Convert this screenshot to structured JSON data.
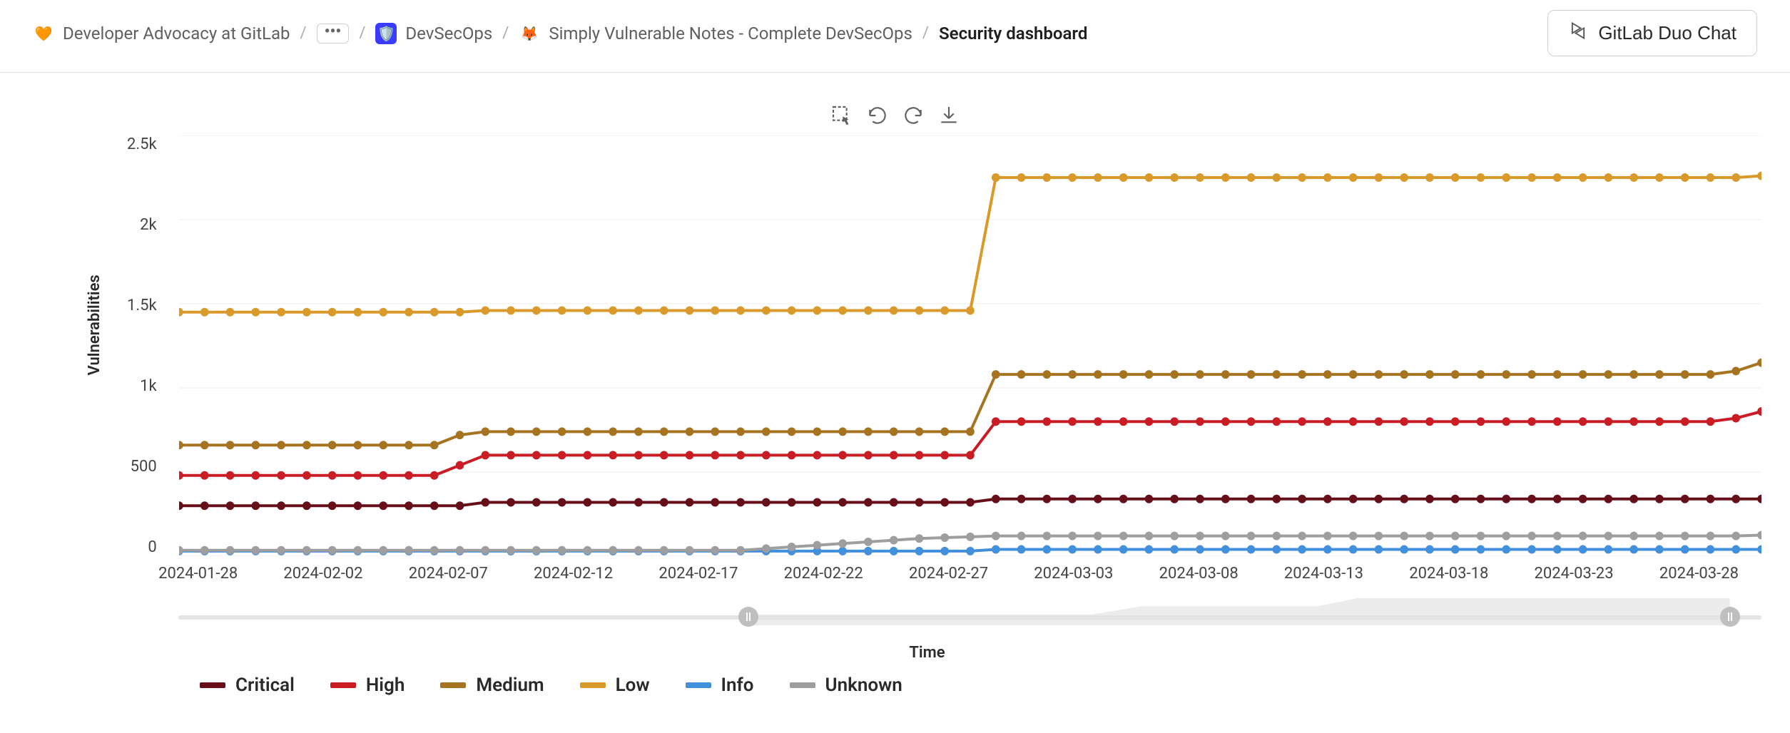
{
  "breadcrumb": {
    "items": [
      {
        "label": "Developer Advocacy at GitLab",
        "icon_bg": "#ffffff",
        "icon_emoji": "🧡"
      },
      {
        "label": "...",
        "is_ellipsis": true
      },
      {
        "label": "DevSecOps",
        "icon_bg": "#3b3bff",
        "icon_emoji": "🛡️"
      },
      {
        "label": "Simply Vulnerable Notes - Complete DevSecOps",
        "icon_bg": "#ffffff",
        "icon_emoji": "🦊"
      },
      {
        "label": "Security dashboard",
        "current": true
      }
    ]
  },
  "duo_button": {
    "label": "GitLab Duo Chat"
  },
  "chart": {
    "type": "line",
    "ylabel": "Vulnerabilities",
    "xlabel": "Time",
    "ylim": [
      0,
      2500
    ],
    "ytick_step": 500,
    "ytick_labels": [
      "2.5k",
      "2k",
      "1.5k",
      "1k",
      "500",
      "0"
    ],
    "background_color": "#ffffff",
    "grid_color": "#dadada",
    "marker_radius": 6,
    "line_width": 4,
    "x_tick_labels": [
      "2024-01-28",
      "2024-02-02",
      "2024-02-07",
      "2024-02-12",
      "2024-02-17",
      "2024-02-22",
      "2024-02-27",
      "2024-03-03",
      "2024-03-08",
      "2024-03-13",
      "2024-03-18",
      "2024-03-23",
      "2024-03-28"
    ],
    "n_points": 63,
    "series": [
      {
        "name": "Critical",
        "color": "#660e19",
        "values": [
          300,
          300,
          300,
          300,
          300,
          300,
          300,
          300,
          300,
          300,
          300,
          300,
          320,
          320,
          320,
          320,
          320,
          320,
          320,
          320,
          320,
          320,
          320,
          320,
          320,
          320,
          320,
          320,
          320,
          320,
          320,
          320,
          340,
          340,
          340,
          340,
          340,
          340,
          340,
          340,
          340,
          340,
          340,
          340,
          340,
          340,
          340,
          340,
          340,
          340,
          340,
          340,
          340,
          340,
          340,
          340,
          340,
          340,
          340,
          340,
          340,
          340,
          340
        ]
      },
      {
        "name": "High",
        "color": "#c91c24",
        "values": [
          480,
          480,
          480,
          480,
          480,
          480,
          480,
          480,
          480,
          480,
          480,
          540,
          600,
          600,
          600,
          600,
          600,
          600,
          600,
          600,
          600,
          600,
          600,
          600,
          600,
          600,
          600,
          600,
          600,
          600,
          600,
          600,
          800,
          800,
          800,
          800,
          800,
          800,
          800,
          800,
          800,
          800,
          800,
          800,
          800,
          800,
          800,
          800,
          800,
          800,
          800,
          800,
          800,
          800,
          800,
          800,
          800,
          800,
          800,
          800,
          800,
          820,
          860
        ]
      },
      {
        "name": "Medium",
        "color": "#a67321",
        "values": [
          660,
          660,
          660,
          660,
          660,
          660,
          660,
          660,
          660,
          660,
          660,
          720,
          740,
          740,
          740,
          740,
          740,
          740,
          740,
          740,
          740,
          740,
          740,
          740,
          740,
          740,
          740,
          740,
          740,
          740,
          740,
          740,
          1080,
          1080,
          1080,
          1080,
          1080,
          1080,
          1080,
          1080,
          1080,
          1080,
          1080,
          1080,
          1080,
          1080,
          1080,
          1080,
          1080,
          1080,
          1080,
          1080,
          1080,
          1080,
          1080,
          1080,
          1080,
          1080,
          1080,
          1080,
          1080,
          1100,
          1150
        ]
      },
      {
        "name": "Low",
        "color": "#d99a2b",
        "values": [
          1450,
          1450,
          1450,
          1450,
          1450,
          1450,
          1450,
          1450,
          1450,
          1450,
          1450,
          1450,
          1460,
          1460,
          1460,
          1460,
          1460,
          1460,
          1460,
          1460,
          1460,
          1460,
          1460,
          1460,
          1460,
          1460,
          1460,
          1460,
          1460,
          1460,
          1460,
          1460,
          2250,
          2250,
          2250,
          2250,
          2250,
          2250,
          2250,
          2250,
          2250,
          2250,
          2250,
          2250,
          2250,
          2250,
          2250,
          2250,
          2250,
          2250,
          2250,
          2250,
          2250,
          2250,
          2250,
          2250,
          2250,
          2250,
          2250,
          2250,
          2250,
          2250,
          2260
        ]
      },
      {
        "name": "Info",
        "color": "#428fdc",
        "values": [
          30,
          30,
          30,
          30,
          30,
          30,
          30,
          30,
          30,
          30,
          30,
          30,
          30,
          30,
          30,
          30,
          30,
          30,
          30,
          30,
          30,
          30,
          30,
          30,
          30,
          30,
          30,
          30,
          30,
          30,
          30,
          30,
          40,
          40,
          40,
          40,
          40,
          40,
          40,
          40,
          40,
          40,
          40,
          40,
          40,
          40,
          40,
          40,
          40,
          40,
          40,
          40,
          40,
          40,
          40,
          40,
          40,
          40,
          40,
          40,
          40,
          40,
          40
        ]
      },
      {
        "name": "Unknown",
        "color": "#9e9e9e",
        "values": [
          35,
          35,
          35,
          35,
          35,
          35,
          35,
          35,
          35,
          35,
          35,
          35,
          35,
          35,
          35,
          35,
          35,
          35,
          35,
          35,
          35,
          35,
          35,
          45,
          55,
          65,
          75,
          85,
          95,
          105,
          110,
          115,
          120,
          120,
          120,
          120,
          120,
          120,
          120,
          120,
          120,
          120,
          120,
          120,
          120,
          120,
          120,
          120,
          120,
          120,
          120,
          120,
          120,
          120,
          120,
          120,
          120,
          120,
          120,
          120,
          120,
          120,
          125
        ]
      }
    ],
    "range_selection": {
      "left_pct": 36,
      "right_pct": 98
    }
  },
  "toolbar_icons": [
    "select-area",
    "undo",
    "redo",
    "download"
  ]
}
